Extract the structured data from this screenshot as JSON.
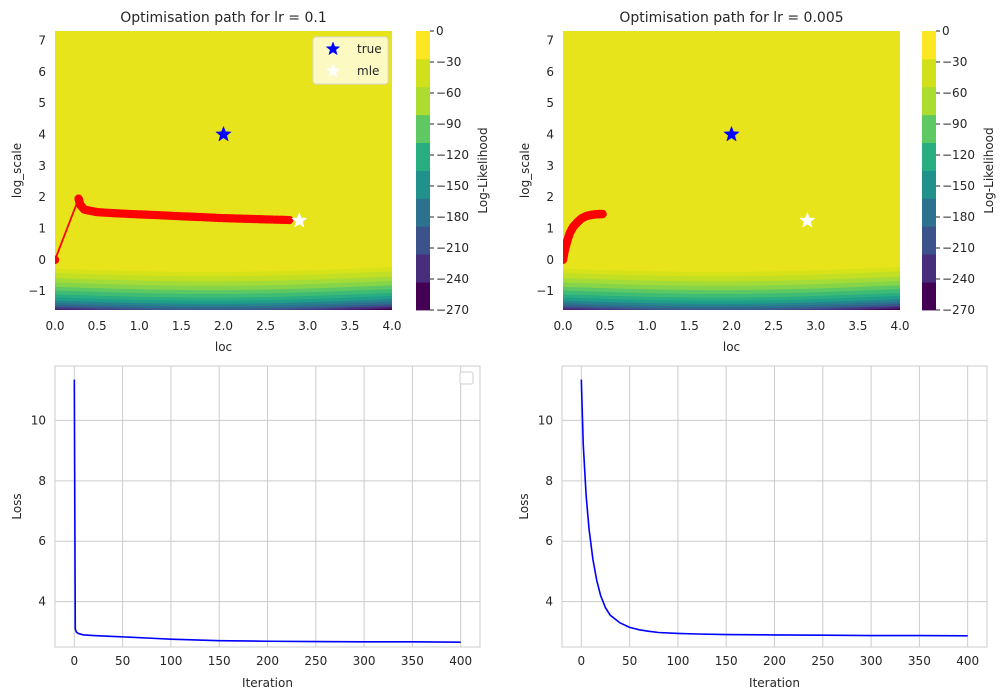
{
  "chart_data": [
    {
      "type": "contour",
      "title": "Optimisation path for lr = 0.1",
      "xlabel": "loc",
      "ylabel": "log_scale",
      "xlim": [
        0.0,
        4.0
      ],
      "ylim": [
        -1.6,
        7.3
      ],
      "xticks": [
        "0.0",
        "0.5",
        "1.0",
        "1.5",
        "2.0",
        "2.5",
        "3.0",
        "3.5",
        "4.0"
      ],
      "yticks": [
        "−1",
        "0",
        "1",
        "2",
        "3",
        "4",
        "5",
        "6",
        "7"
      ],
      "colorbar": {
        "label": "Log-Likelihood",
        "ticks": [
          "0",
          "−30",
          "−60",
          "−90",
          "−120",
          "−150",
          "−180",
          "−210",
          "−240",
          "−270"
        ],
        "range": [
          -270,
          0
        ]
      },
      "markers": [
        {
          "name": "true",
          "x": 2.0,
          "y": 4.0,
          "color": "#0000ff",
          "symbol": "star"
        },
        {
          "name": "mle",
          "x": 2.9,
          "y": 1.25,
          "color": "#ffffff",
          "symbol": "star"
        }
      ],
      "legend": {
        "position": "top-right",
        "entries": [
          "true",
          "mle"
        ]
      },
      "path": {
        "color": "#ff0000",
        "x": [
          0.0,
          0.28,
          0.3,
          0.35,
          0.5,
          0.75,
          1.0,
          1.25,
          1.5,
          1.75,
          2.0,
          2.25,
          2.5,
          2.78
        ],
        "y": [
          0.0,
          1.95,
          1.75,
          1.6,
          1.52,
          1.48,
          1.45,
          1.42,
          1.39,
          1.36,
          1.33,
          1.31,
          1.29,
          1.27
        ]
      }
    },
    {
      "type": "contour",
      "title": "Optimisation path for lr = 0.005",
      "xlabel": "loc",
      "ylabel": "log_scale",
      "xlim": [
        0.0,
        4.0
      ],
      "ylim": [
        -1.6,
        7.3
      ],
      "xticks": [
        "0.0",
        "0.5",
        "1.0",
        "1.5",
        "2.0",
        "2.5",
        "3.0",
        "3.5",
        "4.0"
      ],
      "yticks": [
        "−1",
        "0",
        "1",
        "2",
        "3",
        "4",
        "5",
        "6",
        "7"
      ],
      "colorbar": {
        "label": "Log-Likelihood",
        "ticks": [
          "0",
          "−30",
          "−60",
          "−90",
          "−120",
          "−150",
          "−180",
          "−210",
          "−240",
          "−270"
        ],
        "range": [
          -270,
          0
        ]
      },
      "markers": [
        {
          "name": "true",
          "x": 2.0,
          "y": 4.0,
          "color": "#0000ff",
          "symbol": "star"
        },
        {
          "name": "mle",
          "x": 2.9,
          "y": 1.25,
          "color": "#ffffff",
          "symbol": "star"
        }
      ],
      "path": {
        "color": "#ff0000",
        "x": [
          0.0,
          0.02,
          0.05,
          0.08,
          0.12,
          0.17,
          0.22,
          0.28,
          0.35,
          0.42,
          0.47
        ],
        "y": [
          0.0,
          0.3,
          0.6,
          0.85,
          1.05,
          1.2,
          1.32,
          1.4,
          1.44,
          1.46,
          1.46
        ]
      }
    },
    {
      "type": "line",
      "title": "",
      "xlabel": "Iteration",
      "ylabel": "Loss",
      "xlim": [
        -20,
        420
      ],
      "ylim": [
        2.5,
        11.8
      ],
      "xticks": [
        0,
        50,
        100,
        150,
        200,
        250,
        300,
        350,
        400
      ],
      "yticks": [
        4,
        6,
        8,
        10
      ],
      "grid": true,
      "legend": {
        "position": "top-right",
        "entries": []
      },
      "series": [
        {
          "color": "#0000ff",
          "x": [
            0,
            1,
            2,
            4,
            7,
            10,
            20,
            40,
            60,
            80,
            100,
            150,
            200,
            250,
            300,
            350,
            400
          ],
          "y": [
            11.35,
            3.1,
            3.0,
            2.95,
            2.92,
            2.9,
            2.88,
            2.85,
            2.82,
            2.79,
            2.76,
            2.71,
            2.69,
            2.68,
            2.67,
            2.67,
            2.66
          ]
        }
      ]
    },
    {
      "type": "line",
      "title": "",
      "xlabel": "Iteration",
      "ylabel": "Loss",
      "xlim": [
        -20,
        420
      ],
      "ylim": [
        2.5,
        11.8
      ],
      "xticks": [
        0,
        50,
        100,
        150,
        200,
        250,
        300,
        350,
        400
      ],
      "yticks": [
        4,
        6,
        8,
        10
      ],
      "grid": true,
      "series": [
        {
          "color": "#0000ff",
          "x": [
            0,
            2,
            5,
            8,
            12,
            16,
            20,
            25,
            30,
            40,
            50,
            60,
            70,
            80,
            100,
            120,
            150,
            200,
            250,
            300,
            350,
            400
          ],
          "y": [
            11.35,
            9.2,
            7.5,
            6.4,
            5.4,
            4.7,
            4.2,
            3.8,
            3.55,
            3.3,
            3.15,
            3.07,
            3.02,
            2.98,
            2.95,
            2.93,
            2.91,
            2.9,
            2.89,
            2.88,
            2.88,
            2.87
          ]
        }
      ]
    }
  ]
}
